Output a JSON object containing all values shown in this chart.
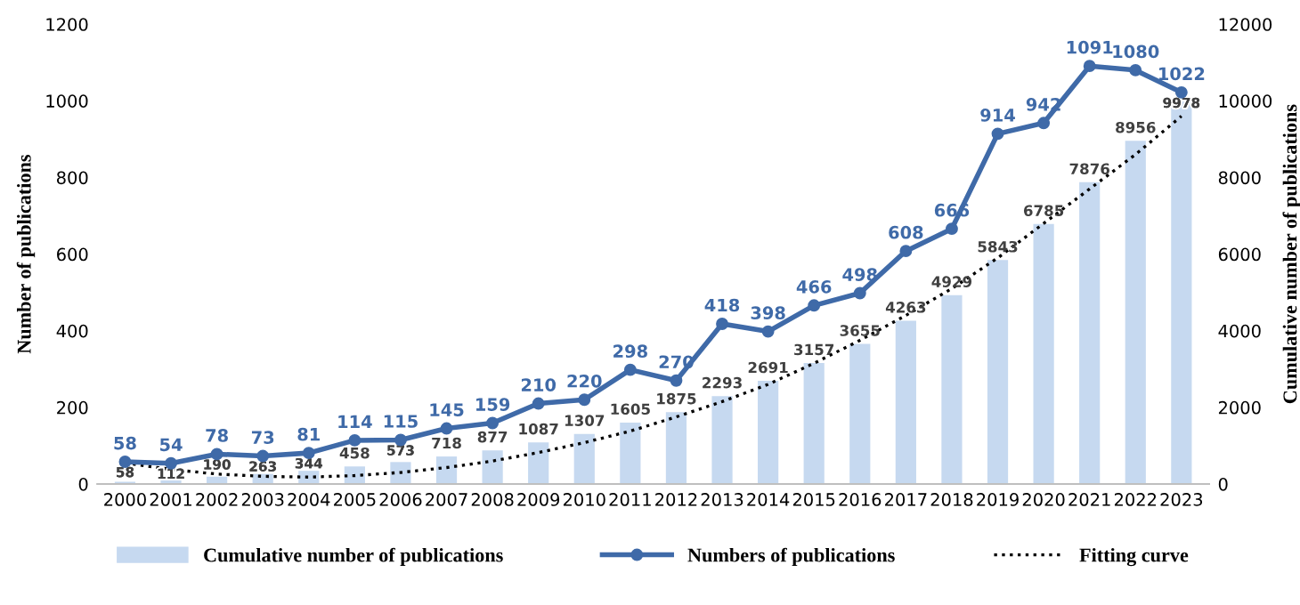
{
  "chart_data": {
    "type": "bar",
    "ylabel": "Number of publications",
    "y2label": "Cumulative number of publications",
    "categories": [
      "2000",
      "2001",
      "2002",
      "2003",
      "2004",
      "2005",
      "2006",
      "2007",
      "2008",
      "2009",
      "2010",
      "2011",
      "2012",
      "2013",
      "2014",
      "2015",
      "2016",
      "2017",
      "2018",
      "2019",
      "2020",
      "2021",
      "2022",
      "2023"
    ],
    "series": [
      {
        "name": "Cumulative number of publications",
        "axis": "y2",
        "color": "#c6d9f0",
        "values": [
          58,
          112,
          190,
          263,
          344,
          458,
          573,
          718,
          877,
          1087,
          1307,
          1605,
          1875,
          2293,
          2691,
          3157,
          3655,
          4263,
          4929,
          5843,
          6785,
          7876,
          8956,
          9978
        ],
        "value_labels": [
          "58",
          "112",
          "190",
          "263",
          "344",
          "458",
          "573",
          "718",
          "877",
          "1087",
          "1307",
          "1605",
          "1875",
          "2293",
          "2691",
          "3157",
          "3655",
          "4263",
          "4929",
          "5843",
          "6785",
          "7876",
          "8956",
          "9978"
        ]
      },
      {
        "name": "Numbers of publications",
        "type": "line",
        "color": "#3f6aa8",
        "marker": "circle",
        "line_style": "solid",
        "values": [
          58,
          54,
          78,
          73,
          81,
          114,
          115,
          145,
          159,
          210,
          220,
          298,
          270,
          418,
          398,
          466,
          498,
          608,
          666,
          914,
          942,
          1091,
          1080,
          1022
        ],
        "value_labels": [
          "58",
          "54",
          "78",
          "73",
          "81",
          "114",
          "115",
          "145",
          "159",
          "210",
          "220",
          "298",
          "270",
          "418",
          "398",
          "466",
          "498",
          "608",
          "666",
          "914",
          "942",
          "1091",
          "1080",
          "1022"
        ]
      },
      {
        "name": "Fitting curve",
        "type": "line",
        "axis": "y2",
        "color": "#000000",
        "marker": "none",
        "line_style": "dotted",
        "values": [
          550,
          380,
          260,
          200,
          180,
          220,
          300,
          430,
          600,
          820,
          1080,
          1380,
          1750,
          2150,
          2600,
          3150,
          3750,
          4400,
          5100,
          5900,
          6800,
          7700,
          8600,
          9600
        ]
      }
    ],
    "ylim": [
      0,
      1200
    ],
    "yticks": [
      0,
      200,
      400,
      600,
      800,
      1000,
      1200
    ],
    "y2lim": [
      0,
      12000
    ],
    "y2ticks": [
      0,
      2000,
      4000,
      6000,
      8000,
      10000,
      12000
    ],
    "grid": false,
    "legend": "bottom"
  }
}
